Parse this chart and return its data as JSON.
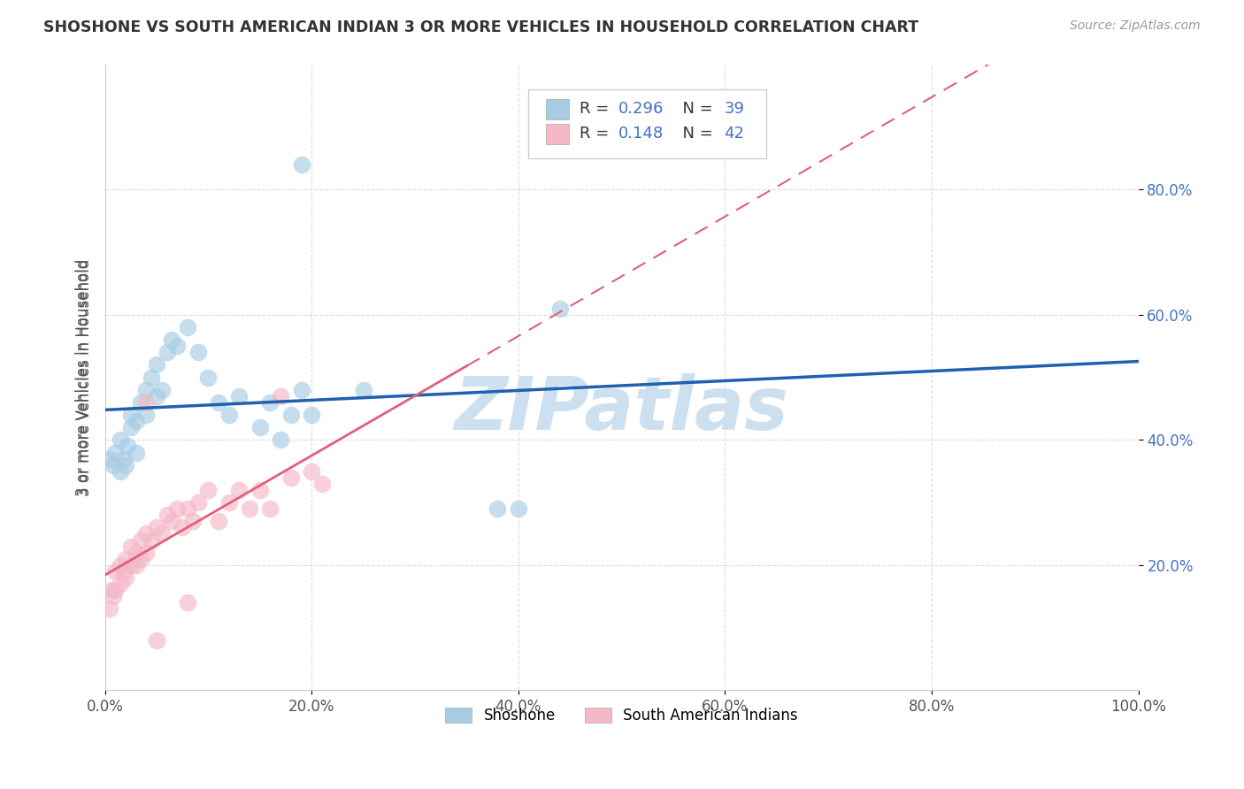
{
  "title": "SHOSHONE VS SOUTH AMERICAN INDIAN 3 OR MORE VEHICLES IN HOUSEHOLD CORRELATION CHART",
  "source": "Source: ZipAtlas.com",
  "ylabel": "3 or more Vehicles in Household",
  "legend_label1": "Shoshone",
  "legend_label2": "South American Indians",
  "r1": 0.296,
  "n1": 39,
  "r2": 0.148,
  "n2": 42,
  "xlim": [
    0.0,
    1.0
  ],
  "ylim": [
    0.0,
    1.0
  ],
  "xticks": [
    0.0,
    0.2,
    0.4,
    0.6,
    0.8,
    1.0
  ],
  "yticks": [
    0.2,
    0.4,
    0.6,
    0.8
  ],
  "xticklabels": [
    "0.0%",
    "20.0%",
    "40.0%",
    "60.0%",
    "80.0%",
    "100.0%"
  ],
  "yticklabels": [
    "20.0%",
    "40.0%",
    "60.0%",
    "80.0%"
  ],
  "color_blue": "#a8cce4",
  "color_pink": "#f4b8c8",
  "line_blue": "#2060b0",
  "line_pink": "#e0607a",
  "background_color": "#ffffff",
  "watermark_color": "#cce0f0",
  "tick_color": "#4472c4",
  "grid_color": "#cccccc",
  "title_color": "#333333",
  "source_color": "#999999",
  "ylabel_color": "#555555",
  "shoshone_x": [
    0.005,
    0.008,
    0.01,
    0.015,
    0.015,
    0.018,
    0.02,
    0.022,
    0.025,
    0.025,
    0.03,
    0.03,
    0.035,
    0.04,
    0.04,
    0.045,
    0.05,
    0.05,
    0.055,
    0.06,
    0.065,
    0.07,
    0.08,
    0.09,
    0.1,
    0.11,
    0.12,
    0.13,
    0.15,
    0.16,
    0.17,
    0.18,
    0.19,
    0.2,
    0.25,
    0.38,
    0.4,
    0.44,
    0.19
  ],
  "shoshone_y": [
    0.37,
    0.36,
    0.38,
    0.35,
    0.4,
    0.37,
    0.36,
    0.39,
    0.42,
    0.44,
    0.38,
    0.43,
    0.46,
    0.44,
    0.48,
    0.5,
    0.47,
    0.52,
    0.48,
    0.54,
    0.56,
    0.55,
    0.58,
    0.54,
    0.5,
    0.46,
    0.44,
    0.47,
    0.42,
    0.46,
    0.4,
    0.44,
    0.48,
    0.44,
    0.48,
    0.29,
    0.29,
    0.61,
    0.84
  ],
  "sa_x": [
    0.005,
    0.006,
    0.008,
    0.01,
    0.01,
    0.015,
    0.015,
    0.018,
    0.02,
    0.02,
    0.025,
    0.025,
    0.03,
    0.03,
    0.035,
    0.035,
    0.04,
    0.04,
    0.045,
    0.05,
    0.055,
    0.06,
    0.065,
    0.07,
    0.075,
    0.08,
    0.085,
    0.09,
    0.1,
    0.11,
    0.12,
    0.13,
    0.14,
    0.15,
    0.16,
    0.18,
    0.2,
    0.21,
    0.04,
    0.05,
    0.08,
    0.17
  ],
  "sa_y": [
    0.13,
    0.16,
    0.15,
    0.16,
    0.19,
    0.17,
    0.2,
    0.19,
    0.18,
    0.21,
    0.2,
    0.23,
    0.2,
    0.22,
    0.21,
    0.24,
    0.22,
    0.25,
    0.24,
    0.26,
    0.25,
    0.28,
    0.27,
    0.29,
    0.26,
    0.29,
    0.27,
    0.3,
    0.32,
    0.27,
    0.3,
    0.32,
    0.29,
    0.32,
    0.29,
    0.34,
    0.35,
    0.33,
    0.46,
    0.08,
    0.14,
    0.47
  ]
}
